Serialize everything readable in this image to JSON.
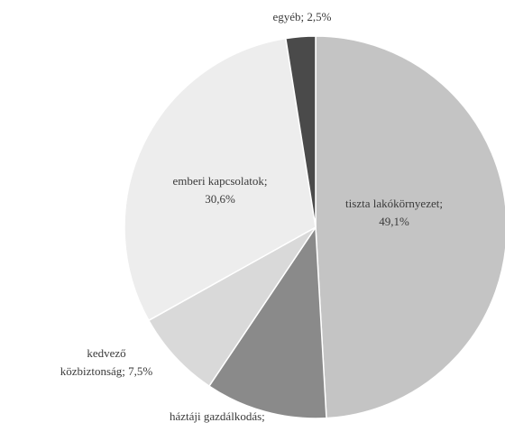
{
  "chart_data": {
    "type": "pie",
    "title": "",
    "start_angle_deg": 0,
    "direction": "clockwise",
    "slices": [
      {
        "label_lines": [
          "tiszta lakókörnyezet;",
          "49,1%"
        ],
        "category": "tiszta lakókörnyezet",
        "value": 49.1,
        "value_text": "49,1%",
        "color": "#c4c4c4"
      },
      {
        "label_lines": [
          "háztáji gazdálkodás;"
        ],
        "category": "háztáji gazdálkodás",
        "value": 10.3,
        "value_text": "",
        "color": "#8a8a8a"
      },
      {
        "label_lines": [
          "kedvező",
          "közbiztonság; 7,5%"
        ],
        "category": "kedvező közbiztonság",
        "value": 7.5,
        "value_text": "7,5%",
        "color": "#d9d9d9"
      },
      {
        "label_lines": [
          "emberi kapcsolatok;",
          "30,6%"
        ],
        "category": "emberi kapcsolatok",
        "value": 30.6,
        "value_text": "30,6%",
        "color": "#ededed"
      },
      {
        "label_lines": [
          "egyéb; 2,5%"
        ],
        "category": "egyéb",
        "value": 2.5,
        "value_text": "2,5%",
        "color": "#4a4a4a"
      }
    ]
  }
}
